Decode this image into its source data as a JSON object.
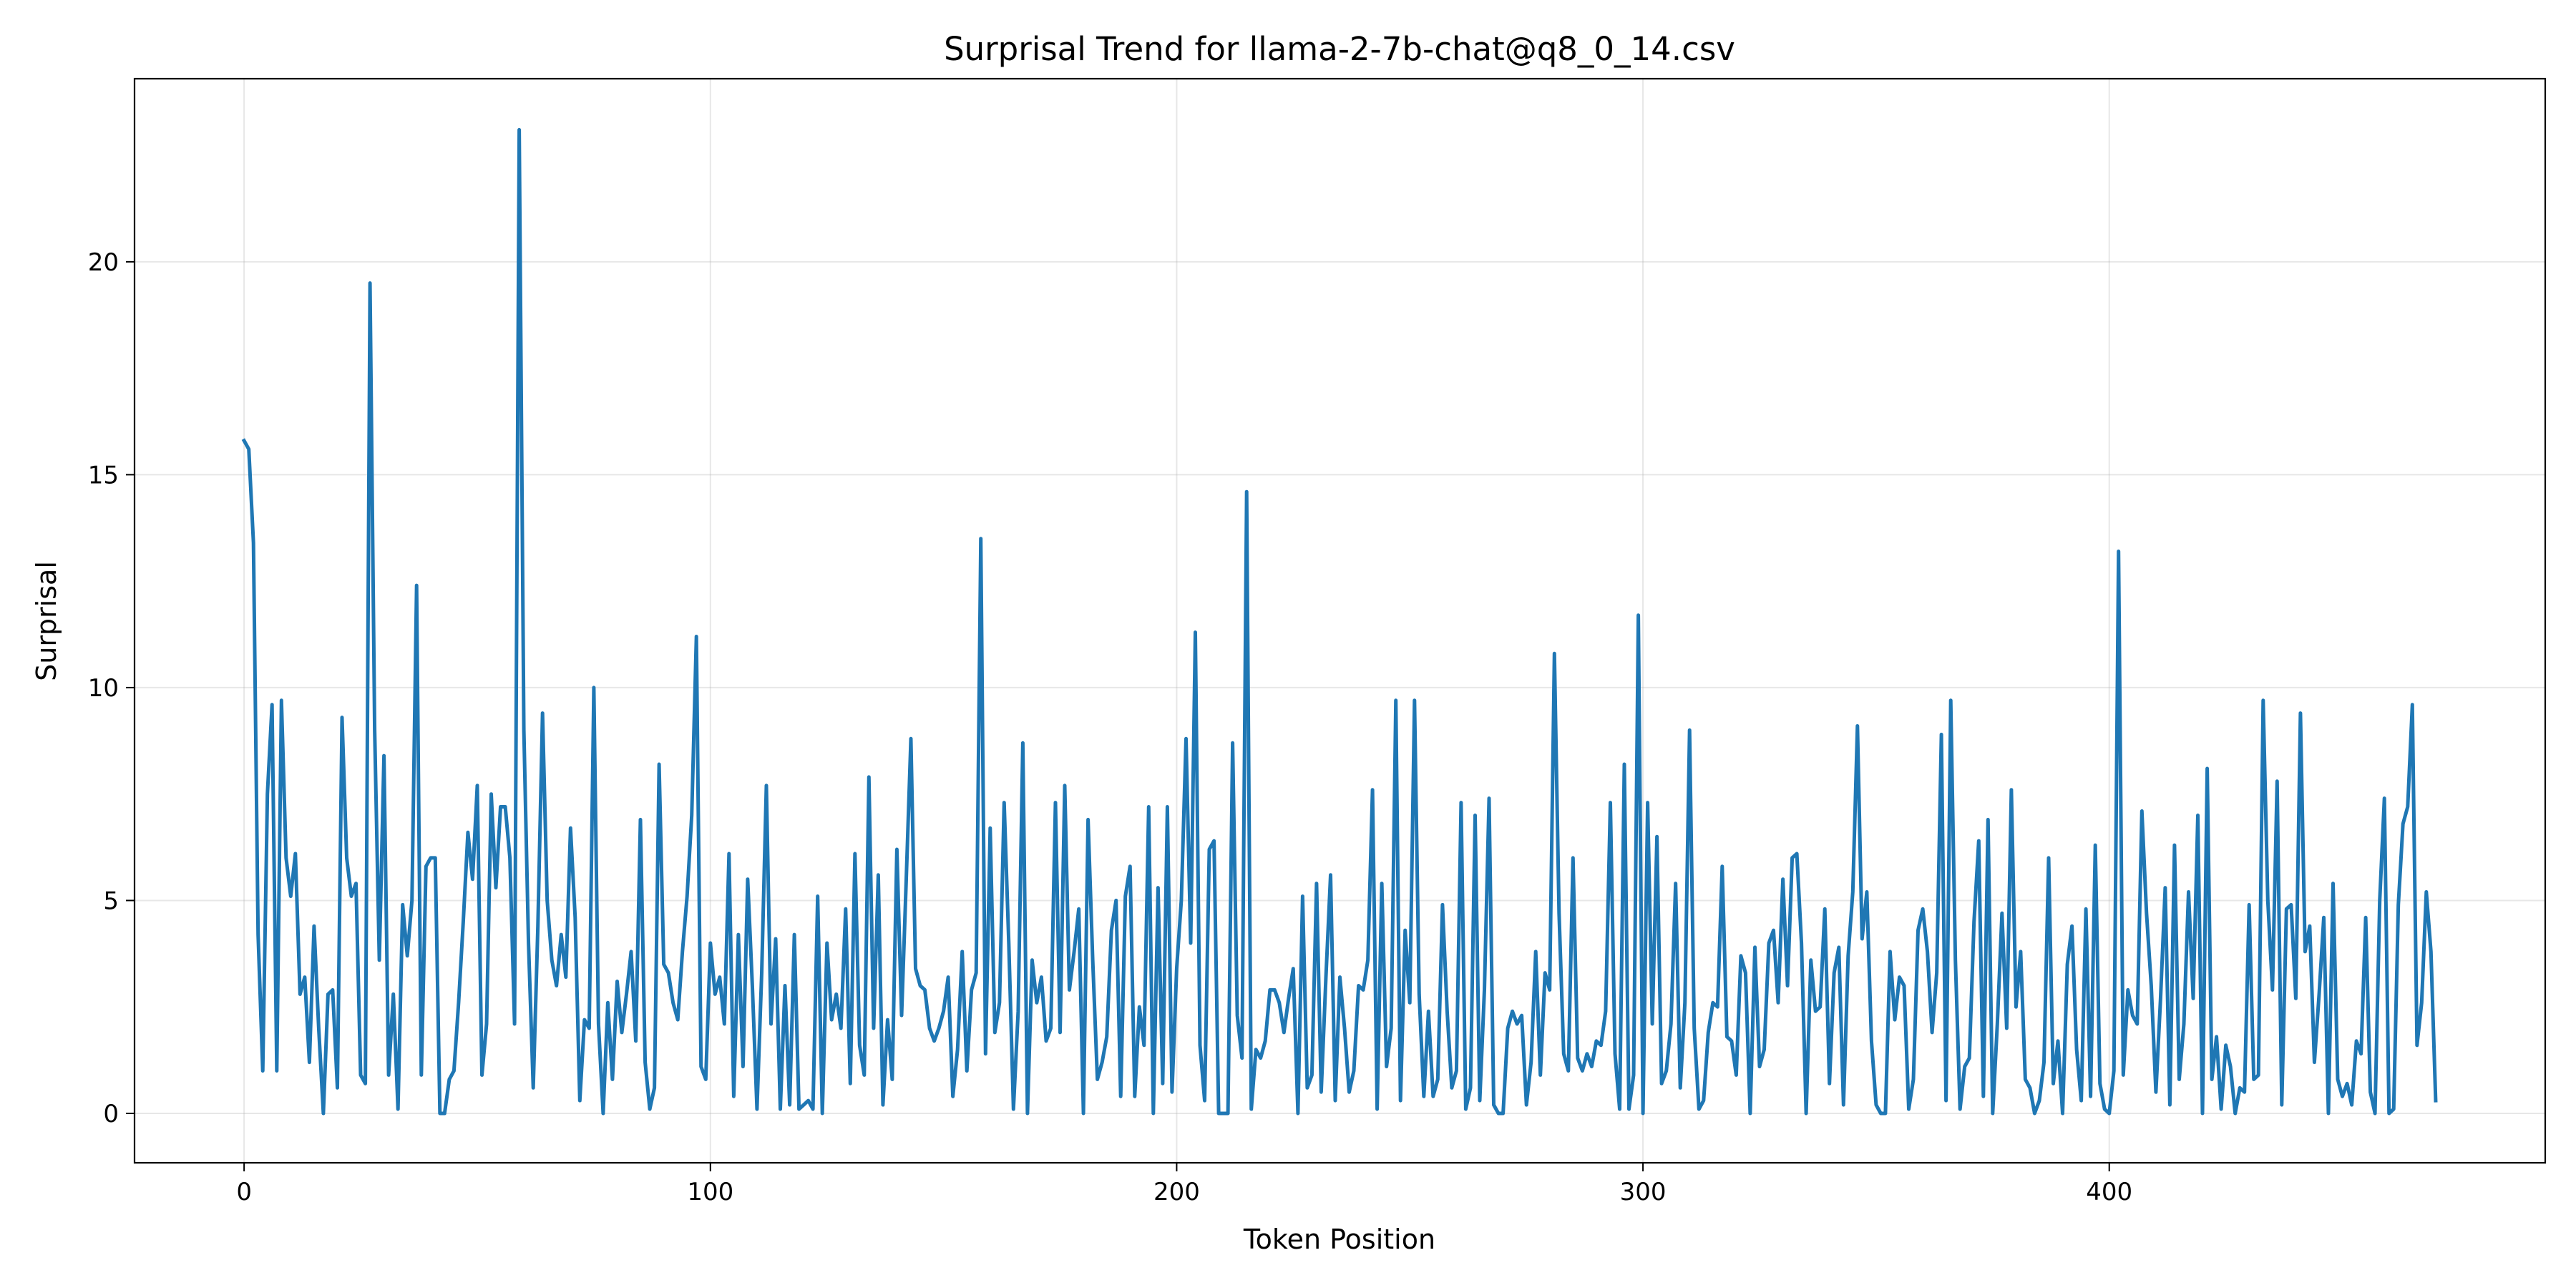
{
  "chart_data": {
    "type": "line",
    "title": "Surprisal Trend for llama-2-7b-chat@q8_0_14.csv",
    "xlabel": "Token Position",
    "ylabel": "Surprisal",
    "xlim": [
      -23.5,
      493.5
    ],
    "ylim": [
      -1.16,
      24.3
    ],
    "xticks": [
      0,
      100,
      200,
      300,
      400
    ],
    "yticks": [
      0,
      5,
      10,
      15,
      20
    ],
    "grid": true,
    "legend": "none",
    "series": [
      {
        "color": "#1f77b4",
        "x_start": 0,
        "x_step": 1,
        "values": [
          15.8,
          15.6,
          13.4,
          4.2,
          1.0,
          7.5,
          9.6,
          1.0,
          9.7,
          6.0,
          5.1,
          6.1,
          2.8,
          3.2,
          1.2,
          4.4,
          2.0,
          0.0,
          2.8,
          2.9,
          0.6,
          9.3,
          6.0,
          5.1,
          5.4,
          0.9,
          0.7,
          19.5,
          9.0,
          3.6,
          8.4,
          0.9,
          2.8,
          0.1,
          4.9,
          3.7,
          5.0,
          12.4,
          0.9,
          5.8,
          6.0,
          6.0,
          0.0,
          0.0,
          0.8,
          1.0,
          2.6,
          4.5,
          6.6,
          5.5,
          7.7,
          0.9,
          2.1,
          7.5,
          5.3,
          7.2,
          7.2,
          6.0,
          2.1,
          23.1,
          9.0,
          4.0,
          0.6,
          4.4,
          9.4,
          5.0,
          3.6,
          3.0,
          4.2,
          3.2,
          6.7,
          4.6,
          0.3,
          2.2,
          2.0,
          10.0,
          2.1,
          0.0,
          2.6,
          0.8,
          3.1,
          1.9,
          2.8,
          3.8,
          1.7,
          6.9,
          1.2,
          0.1,
          0.6,
          8.2,
          3.5,
          3.3,
          2.6,
          2.2,
          3.8,
          5.1,
          7.0,
          11.2,
          1.1,
          0.8,
          4.0,
          2.8,
          3.2,
          2.1,
          6.1,
          0.4,
          4.2,
          1.1,
          5.5,
          3.0,
          0.1,
          3.3,
          7.7,
          2.1,
          4.1,
          0.1,
          3.0,
          0.2,
          4.2,
          0.1,
          0.2,
          0.3,
          0.1,
          5.1,
          0.0,
          4.0,
          2.2,
          2.8,
          2.0,
          4.8,
          0.7,
          6.1,
          1.6,
          0.9,
          7.9,
          2.0,
          5.6,
          0.2,
          2.2,
          0.8,
          6.2,
          2.3,
          5.5,
          8.8,
          3.4,
          3.0,
          2.9,
          2.0,
          1.7,
          2.0,
          2.4,
          3.2,
          0.4,
          1.5,
          3.8,
          1.0,
          2.9,
          3.3,
          13.5,
          1.4,
          6.7,
          1.9,
          2.6,
          7.3,
          4.0,
          0.1,
          2.4,
          8.7,
          0.0,
          3.6,
          2.6,
          3.2,
          1.7,
          2.0,
          7.3,
          1.9,
          7.7,
          2.9,
          3.8,
          4.8,
          0.0,
          6.9,
          3.6,
          0.8,
          1.2,
          1.8,
          4.3,
          5.0,
          0.4,
          5.1,
          5.8,
          0.4,
          2.5,
          1.6,
          7.2,
          0.0,
          5.3,
          0.7,
          7.2,
          0.5,
          3.4,
          5.0,
          8.8,
          4.0,
          11.3,
          1.6,
          0.3,
          6.2,
          6.4,
          0.0,
          0.0,
          0.0,
          8.7,
          2.3,
          1.3,
          14.6,
          0.1,
          1.5,
          1.3,
          1.7,
          2.9,
          2.9,
          2.6,
          1.9,
          2.7,
          3.4,
          0.0,
          5.1,
          0.6,
          0.9,
          5.4,
          0.5,
          3.2,
          5.6,
          0.3,
          3.2,
          2.0,
          0.5,
          1.0,
          3.0,
          2.9,
          3.6,
          7.6,
          0.1,
          5.4,
          1.1,
          2.0,
          9.7,
          0.3,
          4.3,
          2.6,
          9.7,
          2.8,
          0.4,
          2.4,
          0.4,
          0.8,
          4.9,
          2.4,
          0.6,
          1.0,
          7.3,
          0.1,
          0.6,
          7.0,
          0.3,
          2.9,
          7.4,
          0.2,
          0.0,
          0.0,
          2.0,
          2.4,
          2.1,
          2.3,
          0.2,
          1.2,
          3.8,
          0.9,
          3.3,
          2.9,
          10.8,
          4.7,
          1.4,
          1.0,
          6.0,
          1.3,
          1.0,
          1.4,
          1.1,
          1.7,
          1.6,
          2.4,
          7.3,
          1.4,
          0.1,
          8.2,
          0.1,
          0.9,
          11.7,
          0.0,
          7.3,
          2.1,
          6.5,
          0.7,
          1.0,
          2.1,
          5.4,
          0.6,
          2.6,
          9.0,
          2.0,
          0.1,
          0.3,
          1.9,
          2.6,
          2.5,
          5.8,
          1.8,
          1.7,
          0.9,
          3.7,
          3.3,
          0.0,
          3.9,
          1.1,
          1.5,
          4.0,
          4.3,
          2.6,
          5.5,
          3.0,
          6.0,
          6.1,
          4.0,
          0.0,
          3.6,
          2.4,
          2.5,
          4.8,
          0.7,
          3.3,
          3.9,
          0.2,
          3.7,
          5.2,
          9.1,
          4.1,
          5.2,
          1.7,
          0.2,
          0.0,
          0.0,
          3.8,
          2.2,
          3.2,
          3.0,
          0.1,
          0.8,
          4.3,
          4.8,
          3.8,
          1.9,
          3.3,
          8.9,
          0.3,
          9.7,
          3.6,
          0.1,
          1.1,
          1.3,
          4.5,
          6.4,
          0.4,
          6.9,
          0.0,
          2.1,
          4.7,
          2.0,
          7.6,
          2.5,
          3.8,
          0.8,
          0.6,
          0.0,
          0.3,
          1.2,
          6.0,
          0.7,
          1.7,
          0.0,
          3.5,
          4.4,
          1.5,
          0.3,
          4.8,
          0.4,
          6.3,
          0.7,
          0.1,
          0.0,
          1.0,
          13.2,
          0.9,
          2.9,
          2.3,
          2.1,
          7.1,
          4.7,
          3.0,
          0.5,
          2.7,
          5.3,
          0.2,
          6.3,
          0.8,
          2.1,
          5.2,
          2.7,
          7.0,
          0.0,
          8.1,
          0.8,
          1.8,
          0.1,
          1.6,
          1.1,
          0.0,
          0.6,
          0.5,
          4.9,
          0.8,
          0.9,
          9.7,
          5.0,
          2.9,
          7.8,
          0.2,
          4.8,
          4.9,
          2.7,
          9.4,
          3.8,
          4.4,
          1.2,
          2.8,
          4.6,
          0.0,
          5.4,
          0.8,
          0.4,
          0.7,
          0.2,
          1.7,
          1.4,
          4.6,
          0.5,
          0.0,
          5.0,
          7.4,
          0.0,
          0.1,
          4.9,
          6.8,
          7.2,
          9.6,
          1.6,
          2.6,
          5.2,
          3.8,
          0.3
        ]
      }
    ]
  }
}
